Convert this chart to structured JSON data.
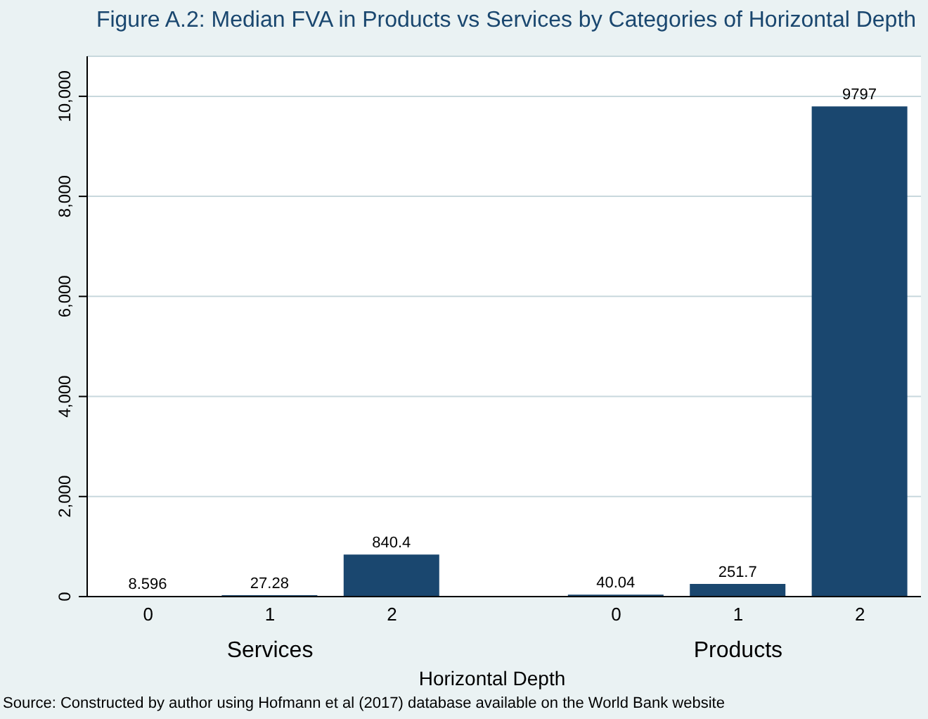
{
  "chart_data": {
    "type": "bar",
    "title": "Figure A.2: Median FVA in Products vs Services by Categories of Horizontal Depth",
    "xlabel": "Horizontal Depth",
    "categories": [
      "0",
      "1",
      "2",
      "0",
      "1",
      "2"
    ],
    "values": [
      8.596,
      27.28,
      840.4,
      40.04,
      251.7,
      9797
    ],
    "color": "#1a476f",
    "data_labels": true,
    "ylim": [
      0,
      10800
    ],
    "yticks": [
      0,
      {
        "value": 2000,
        "label": "2,000"
      },
      {
        "value": 4000,
        "label": "4,000"
      },
      {
        "value": 6000,
        "label": "6,000"
      },
      {
        "value": 8000,
        "label": "8,000"
      },
      {
        "value": 10000,
        "label": "10,000"
      }
    ],
    "grid": "y",
    "annotations": [
      "Services",
      "Products",
      "Source: Constructed by author using Hofmann et al (2017) database available on the World Bank website"
    ]
  }
}
